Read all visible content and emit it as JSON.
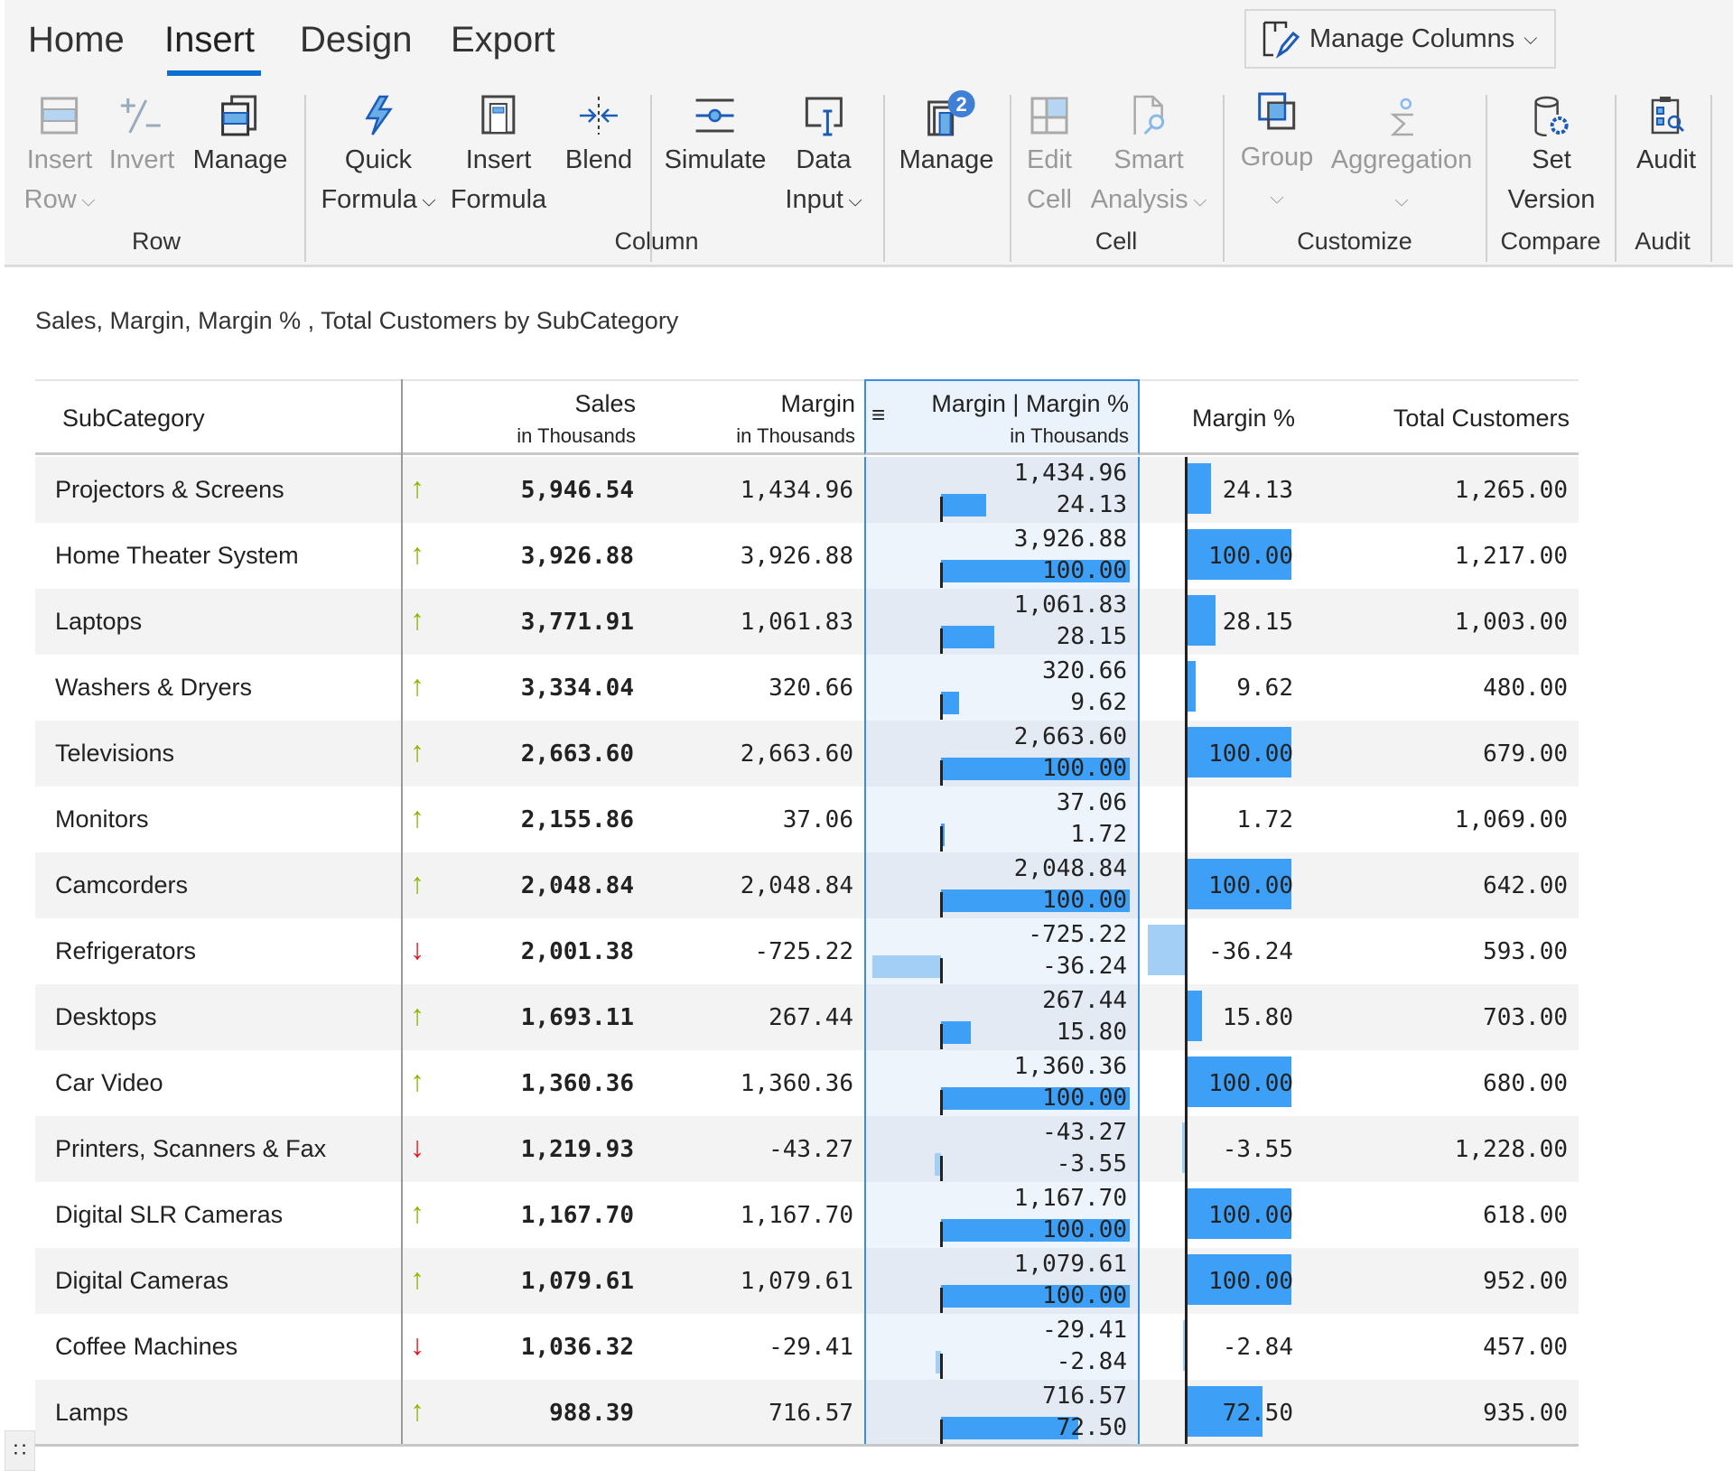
{
  "tabs": [
    "Home",
    "Insert",
    "Design",
    "Export"
  ],
  "manage_columns": "Manage Columns",
  "ribbon": {
    "insert_row": [
      "Insert",
      "Row"
    ],
    "invert": "Invert",
    "manage_row": "Manage",
    "quick_formula": [
      "Quick",
      "Formula"
    ],
    "insert_formula": [
      "Insert",
      "Formula"
    ],
    "blend": "Blend",
    "simulate": "Simulate",
    "data_input": [
      "Data",
      "Input"
    ],
    "manage_col": "Manage",
    "manage_badge": "2",
    "edit_cell": [
      "Edit",
      "Cell"
    ],
    "smart_analysis": [
      "Smart",
      "Analysis"
    ],
    "group": "Group",
    "aggregation": "Aggregation",
    "set_version": [
      "Set",
      "Version"
    ],
    "audit": "Audit",
    "groups": [
      "Row",
      "Column",
      "Cell",
      "Customize",
      "Compare",
      "Audit"
    ]
  },
  "title": "Sales, Margin, Margin % , Total Customers by SubCategory",
  "headers": {
    "subcategory": "SubCategory",
    "sales": "Sales",
    "sales_sub": "in Thousands",
    "margin": "Margin",
    "margin_sub": "in Thousands",
    "combo": "Margin | Margin %",
    "combo_sub": "in Thousands",
    "margin_pct": "Margin %",
    "customers": "Total Customers"
  },
  "colors": {
    "bar": "#3d9ff5",
    "neg_bar": "#a3cff7",
    "up": "#8db800",
    "down": "#e8101a"
  },
  "rows": [
    {
      "name": "Projectors & Screens",
      "trend": "up",
      "sales": "5,946.54",
      "margin": "1,434.96",
      "pct": "24.13",
      "pct_value": 24.13,
      "customers": "1,265.00"
    },
    {
      "name": "Home Theater System",
      "trend": "up",
      "sales": "3,926.88",
      "margin": "3,926.88",
      "pct": "100.00",
      "pct_value": 100,
      "customers": "1,217.00"
    },
    {
      "name": "Laptops",
      "trend": "up",
      "sales": "3,771.91",
      "margin": "1,061.83",
      "pct": "28.15",
      "pct_value": 28.15,
      "customers": "1,003.00"
    },
    {
      "name": "Washers & Dryers",
      "trend": "up",
      "sales": "3,334.04",
      "margin": "320.66",
      "pct": "9.62",
      "pct_value": 9.62,
      "customers": "480.00"
    },
    {
      "name": "Televisions",
      "trend": "up",
      "sales": "2,663.60",
      "margin": "2,663.60",
      "pct": "100.00",
      "pct_value": 100,
      "customers": "679.00"
    },
    {
      "name": "Monitors",
      "trend": "up",
      "sales": "2,155.86",
      "margin": "37.06",
      "pct": "1.72",
      "pct_value": 1.72,
      "customers": "1,069.00"
    },
    {
      "name": "Camcorders",
      "trend": "up",
      "sales": "2,048.84",
      "margin": "2,048.84",
      "pct": "100.00",
      "pct_value": 100,
      "customers": "642.00"
    },
    {
      "name": "Refrigerators",
      "trend": "down",
      "sales": "2,001.38",
      "margin": "-725.22",
      "pct": "-36.24",
      "pct_value": -36.24,
      "customers": "593.00"
    },
    {
      "name": "Desktops",
      "trend": "up",
      "sales": "1,693.11",
      "margin": "267.44",
      "pct": "15.80",
      "pct_value": 15.8,
      "customers": "703.00"
    },
    {
      "name": "Car Video",
      "trend": "up",
      "sales": "1,360.36",
      "margin": "1,360.36",
      "pct": "100.00",
      "pct_value": 100,
      "customers": "680.00"
    },
    {
      "name": "Printers, Scanners & Fax",
      "trend": "down",
      "sales": "1,219.93",
      "margin": "-43.27",
      "pct": "-3.55",
      "pct_value": -3.55,
      "customers": "1,228.00"
    },
    {
      "name": "Digital SLR Cameras",
      "trend": "up",
      "sales": "1,167.70",
      "margin": "1,167.70",
      "pct": "100.00",
      "pct_value": 100,
      "customers": "618.00"
    },
    {
      "name": "Digital Cameras",
      "trend": "up",
      "sales": "1,079.61",
      "margin": "1,079.61",
      "pct": "100.00",
      "pct_value": 100,
      "customers": "952.00"
    },
    {
      "name": "Coffee Machines",
      "trend": "down",
      "sales": "1,036.32",
      "margin": "-29.41",
      "pct": "-2.84",
      "pct_value": -2.84,
      "customers": "457.00"
    },
    {
      "name": "Lamps",
      "trend": "up",
      "sales": "988.39",
      "margin": "716.57",
      "pct": "72.50",
      "pct_value": 72.5,
      "customers": "935.00"
    }
  ]
}
